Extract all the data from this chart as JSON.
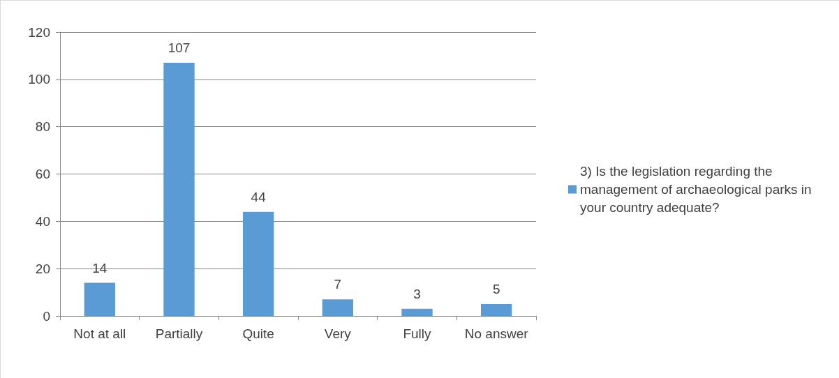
{
  "chart_data": {
    "type": "bar",
    "categories": [
      "Not at all",
      "Partially",
      "Quite",
      "Very",
      "Fully",
      "No answer"
    ],
    "series": [
      {
        "name": "3) Is the legislation regarding the management of archaeological parks in your country adequate?",
        "color": "#5b9bd5",
        "values": [
          14,
          107,
          44,
          7,
          3,
          5
        ]
      }
    ],
    "ylim": [
      0,
      120
    ],
    "yticks": [
      0,
      20,
      40,
      60,
      80,
      100,
      120
    ],
    "grid": "y",
    "legend": "right",
    "data_labels": true
  }
}
